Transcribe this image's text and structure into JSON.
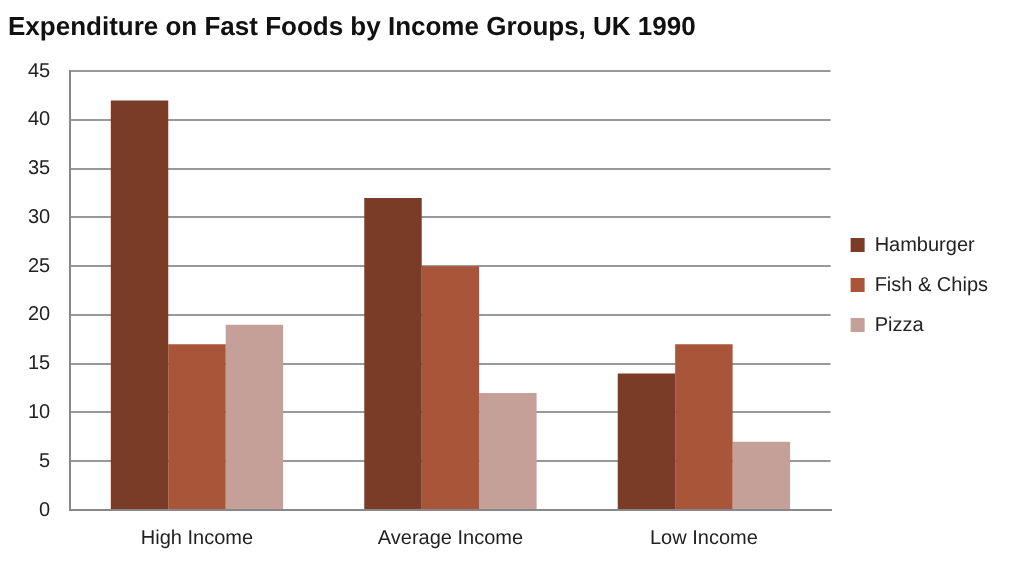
{
  "chart_data": {
    "type": "bar",
    "title": "Expenditure on Fast Foods by Income Groups, UK 1990",
    "categories": [
      "High Income",
      "Average Income",
      "Low Income"
    ],
    "series": [
      {
        "name": "Hamburger",
        "color": "#7a3b27",
        "values": [
          42,
          32,
          14
        ]
      },
      {
        "name": "Fish & Chips",
        "color": "#a9553a",
        "values": [
          17,
          25,
          17
        ]
      },
      {
        "name": "Pizza",
        "color": "#c4a098",
        "values": [
          19,
          12,
          7
        ]
      }
    ],
    "ylim": [
      0,
      45
    ],
    "yticks": [
      0,
      5,
      10,
      15,
      20,
      25,
      30,
      35,
      40,
      45
    ],
    "grid": "y",
    "legend": "right"
  }
}
